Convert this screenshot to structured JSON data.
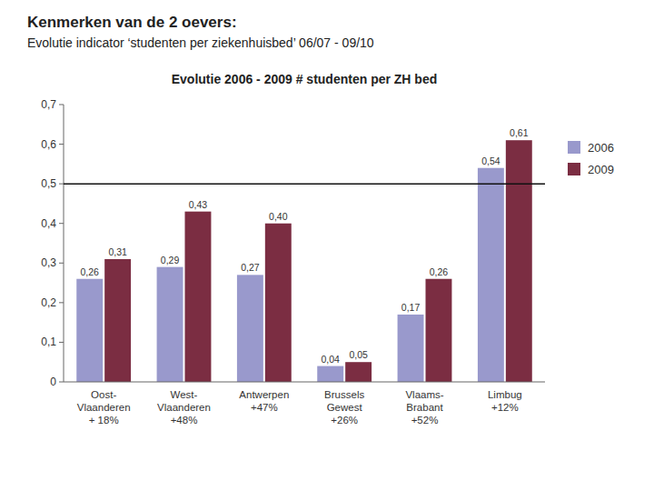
{
  "page_title": [
    "Kenmerken van de 2 oevers:",
    "Evolutie indicator ‘studenten per ziekenhuisbed’ 06/07 - 09/10"
  ],
  "chart_data": {
    "type": "bar",
    "title": "Evolutie 2006 - 2009 # studenten per ZH bed",
    "categories": [
      "Oost-\nVlaanderen\n+ 18%",
      "West-\nVlaanderen\n+48%",
      "Antwerpen\n+47%",
      "Brussels\nGewest\n+26%",
      "Vlaams-\nBrabant\n+52%",
      "Limbug\n+12%"
    ],
    "series": [
      {
        "name": "2006",
        "color": "#9999CC",
        "values": [
          0.26,
          0.29,
          0.27,
          0.04,
          0.17,
          0.54
        ],
        "value_labels": [
          "0,26",
          "0,29",
          "0,27",
          "0,04",
          "0,17",
          "0,54"
        ]
      },
      {
        "name": "2009",
        "color": "#7B2D42",
        "values": [
          0.31,
          0.43,
          0.4,
          0.05,
          0.26,
          0.61
        ],
        "value_labels": [
          "0,31",
          "0,43",
          "0,40",
          "0,05",
          "0,26",
          "0,61"
        ]
      }
    ],
    "ylim": [
      0,
      0.7
    ],
    "yticks": [
      0,
      {
        "value": 0.1,
        "label": "0,1"
      },
      {
        "value": 0.2,
        "label": "0,2"
      },
      {
        "value": 0.3,
        "label": "0,3"
      },
      {
        "value": 0.4,
        "label": "0,4"
      },
      {
        "value": 0.5,
        "label": "0,5"
      },
      {
        "value": 0.6,
        "label": "0,6"
      },
      {
        "value": 0.7,
        "label": "0,7"
      }
    ],
    "hline": 0.5,
    "data_labels": true,
    "legend": "right",
    "grid": false
  }
}
